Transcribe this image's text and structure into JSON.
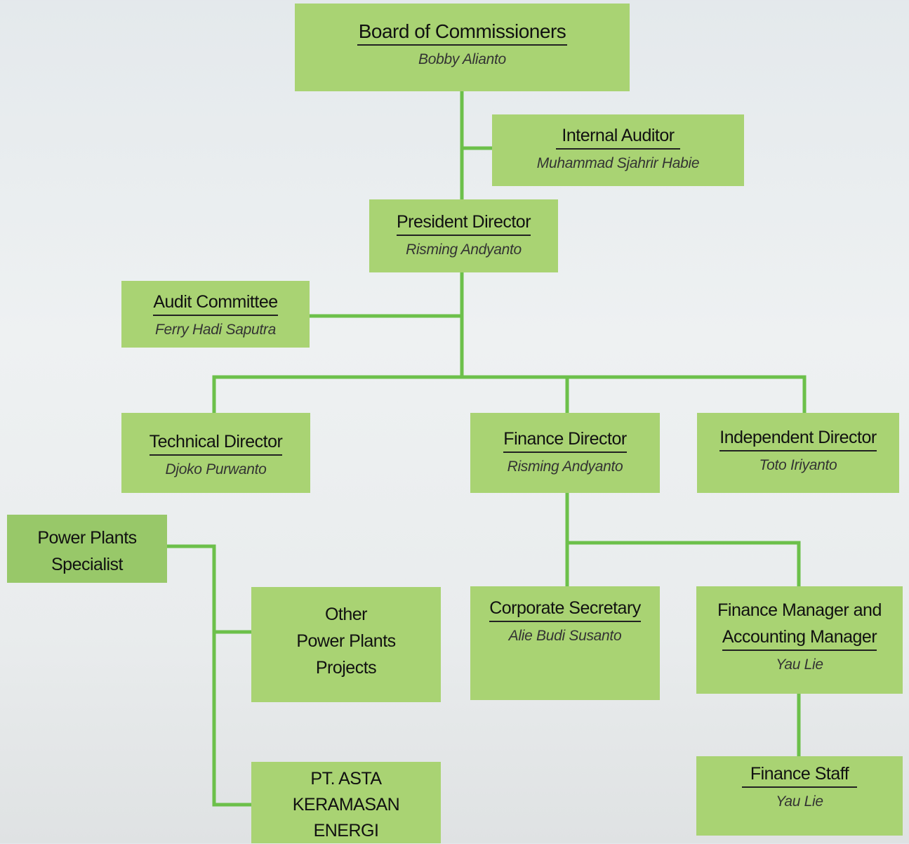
{
  "nodes": [
    {
      "title": [
        "Board of Commissioners"
      ],
      "name": "Bobby Alianto"
    },
    {
      "title": [
        "Internal Auditor"
      ],
      "name": "Muhammad Sjahrir Habie"
    },
    {
      "title": [
        "President Director"
      ],
      "name": "Risming Andyanto"
    },
    {
      "title": [
        "Audit Committee"
      ],
      "name": "Ferry Hadi Saputra"
    },
    {
      "title": [
        "Technical Director"
      ],
      "name": "Djoko Purwanto"
    },
    {
      "title": [
        "Finance Director"
      ],
      "name": "Risming Andyanto"
    },
    {
      "title": [
        "Independent Director"
      ],
      "name": "Toto Iriyanto"
    },
    {
      "title": [
        "Power Plants",
        "Specialist"
      ]
    },
    {
      "title": [
        "Other",
        "Power Plants",
        "Projects"
      ]
    },
    {
      "title": [
        "Corporate Secretary"
      ],
      "name": "Alie Budi Susanto"
    },
    {
      "title": [
        "Finance Manager and",
        "Accounting Manager"
      ],
      "name": "Yau Lie"
    },
    {
      "title": [
        "Finance Staff"
      ],
      "name": "Yau Lie"
    },
    {
      "title": [
        "PT. ASTA",
        "KERAMASAN",
        "ENERGI"
      ]
    }
  ]
}
